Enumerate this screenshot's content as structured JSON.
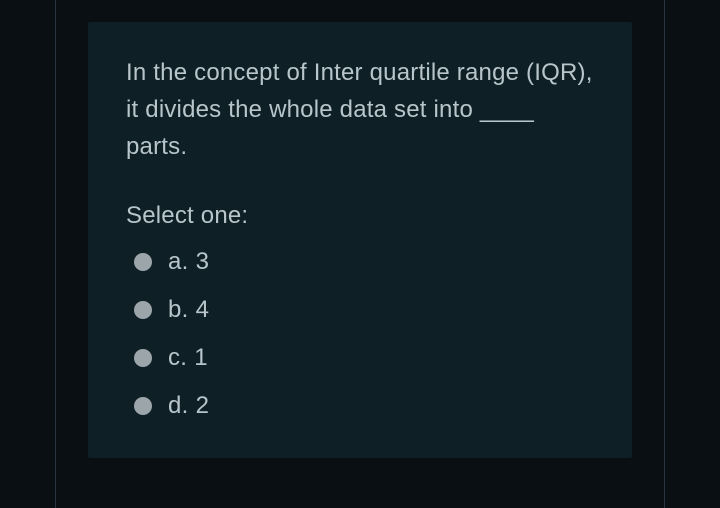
{
  "question": {
    "text": "In the concept of Inter quartile range (IQR), it divides the whole data set into ____ parts.",
    "select_label": "Select one:",
    "options": [
      {
        "label": "a. 3"
      },
      {
        "label": "b. 4"
      },
      {
        "label": "c. 1"
      },
      {
        "label": "d. 2"
      }
    ]
  },
  "styles": {
    "background_color": "#0a0f14",
    "card_background": "#0e1f25",
    "text_color": "#b8c5ca",
    "radio_color": "#9ba5aa",
    "border_color": "#2a3540",
    "font_size_main": 24,
    "font_weight": 300
  }
}
